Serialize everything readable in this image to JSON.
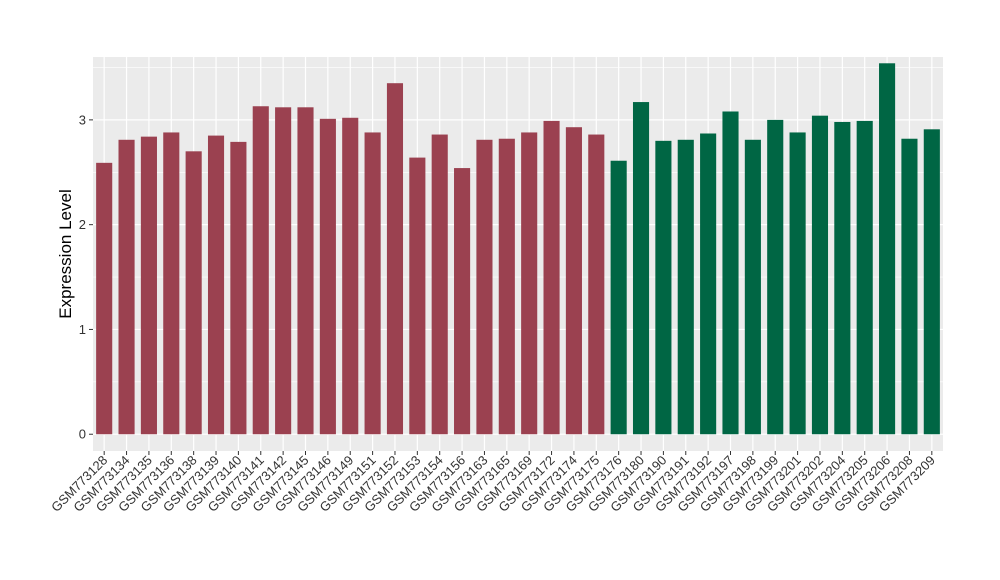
{
  "chart_data": {
    "type": "bar",
    "title": "",
    "xlabel": "",
    "ylabel": "Expression Level",
    "ylim": [
      -0.16,
      3.6
    ],
    "yticks": [
      0,
      1,
      2,
      3
    ],
    "grid": true,
    "legend": "none",
    "panel_background": "#ebebeb",
    "gridline_color": "#ffffff",
    "categories": [
      "GSM773128",
      "GSM773134",
      "GSM773135",
      "GSM773136",
      "GSM773138",
      "GSM773139",
      "GSM773140",
      "GSM773141",
      "GSM773142",
      "GSM773145",
      "GSM773146",
      "GSM773149",
      "GSM773151",
      "GSM773152",
      "GSM773153",
      "GSM773154",
      "GSM773156",
      "GSM773163",
      "GSM773165",
      "GSM773169",
      "GSM773172",
      "GSM773174",
      "GSM773175",
      "GSM773176",
      "GSM773180",
      "GSM773190",
      "GSM773191",
      "GSM773192",
      "GSM773197",
      "GSM773198",
      "GSM773199",
      "GSM773201",
      "GSM773202",
      "GSM773204",
      "GSM773205",
      "GSM773206",
      "GSM773208",
      "GSM773209"
    ],
    "series": [
      {
        "color": "#9b4150",
        "values": [
          2.59,
          2.81,
          2.84,
          2.88,
          2.7,
          2.85,
          2.79,
          3.13,
          3.12,
          3.12,
          3.01,
          3.02,
          2.88,
          3.35,
          2.64,
          2.86,
          2.54,
          2.81,
          2.82,
          2.88,
          2.99,
          2.93,
          2.86,
          null,
          null,
          null,
          null,
          null,
          null,
          null,
          null,
          null,
          null,
          null,
          null,
          null,
          null,
          null
        ]
      },
      {
        "color": "#006644",
        "values": [
          null,
          null,
          null,
          null,
          null,
          null,
          null,
          null,
          null,
          null,
          null,
          null,
          null,
          null,
          null,
          null,
          null,
          null,
          null,
          null,
          null,
          null,
          null,
          2.61,
          3.17,
          2.8,
          2.81,
          2.87,
          3.08,
          2.81,
          3.0,
          2.88,
          3.04,
          2.98,
          2.99,
          3.54,
          2.82,
          2.91
        ]
      }
    ]
  }
}
